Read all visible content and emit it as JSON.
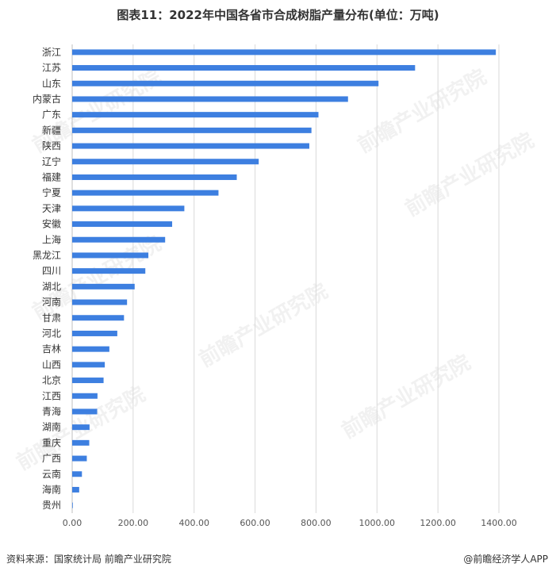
{
  "title": "图表11：2022年中国各省市合成树脂产量分布(单位：万吨)",
  "source": "资料来源：国家统计局 前瞻产业研究院",
  "brand": "@前瞻经济学人APP",
  "watermark": "前瞻产业研究院",
  "colors": {
    "bar": "#3d7fe0",
    "grid": "#d9d9d9",
    "axis": "#bfbfbf"
  },
  "chart_data": {
    "type": "bar",
    "orientation": "horizontal",
    "categories": [
      "浙江",
      "江苏",
      "山东",
      "内蒙古",
      "广东",
      "新疆",
      "陕西",
      "辽宁",
      "福建",
      "宁夏",
      "天津",
      "安徽",
      "上海",
      "黑龙江",
      "四川",
      "湖北",
      "河南",
      "甘肃",
      "河北",
      "吉林",
      "山西",
      "北京",
      "江西",
      "青海",
      "湖南",
      "重庆",
      "广西",
      "云南",
      "海南",
      "贵州"
    ],
    "values": [
      1390,
      1125,
      1005,
      905,
      808,
      785,
      778,
      612,
      540,
      480,
      368,
      328,
      305,
      250,
      240,
      205,
      180,
      170,
      148,
      122,
      107,
      103,
      83,
      82,
      57,
      56,
      48,
      32,
      23,
      1
    ],
    "xlim": [
      0,
      1400
    ],
    "xticks": [
      "0.00",
      "200.00",
      "400.00",
      "600.00",
      "800.00",
      "1000.00",
      "1200.00",
      "1400.00"
    ],
    "grid": true
  }
}
